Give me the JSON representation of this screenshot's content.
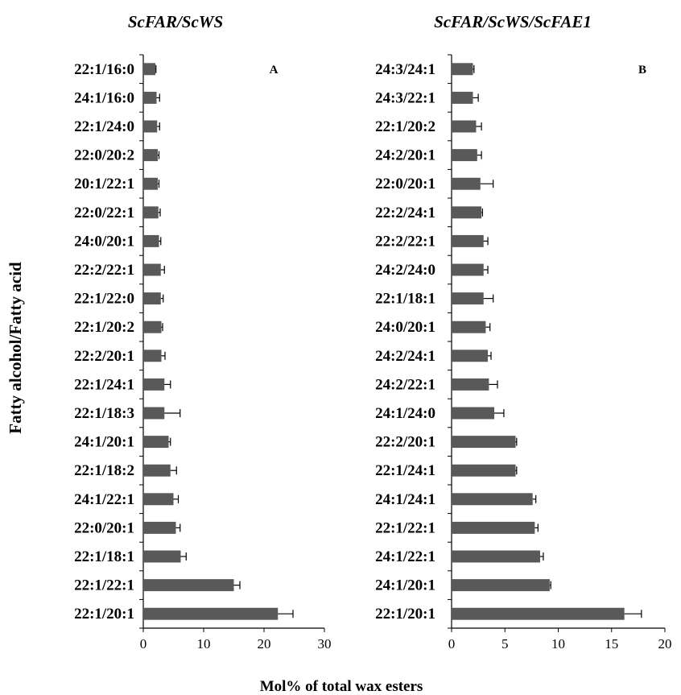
{
  "y_axis_label": "Fatty alcohol/Fatty acid",
  "x_axis_label": "Mol% of total wax esters",
  "chart_data": [
    {
      "type": "bar",
      "orientation": "horizontal",
      "title": "ScFAR/ScWS",
      "panel": "A",
      "categories": [
        "22:1/16:0",
        "24:1/16:0",
        "22:1/24:0",
        "22:0/20:2",
        "20:1/22:1",
        "22:0/22:1",
        "24:0/20:1",
        "22:2/22:1",
        "22:1/22:0",
        "22:1/20:2",
        "22:2/20:1",
        "22:1/24:1",
        "22:1/18:3",
        "24:1/20:1",
        "22:1/18:2",
        "24:1/22:1",
        "22:0/20:1",
        "22:1/18:1",
        "22:1/22:1",
        "22:1/20:1"
      ],
      "values": [
        2.0,
        2.2,
        2.3,
        2.4,
        2.4,
        2.5,
        2.6,
        2.9,
        2.9,
        3.0,
        3.0,
        3.5,
        3.5,
        4.2,
        4.5,
        5.0,
        5.4,
        6.2,
        15.0,
        22.3
      ],
      "errors": [
        0.1,
        0.5,
        0.4,
        0.2,
        0.2,
        0.3,
        0.3,
        0.6,
        0.4,
        0.2,
        0.6,
        1.0,
        2.6,
        0.3,
        1.0,
        0.8,
        0.7,
        0.9,
        1.0,
        2.5
      ],
      "xlim": [
        0,
        30
      ],
      "xticks": [
        0,
        10,
        20,
        30
      ],
      "grid": false
    },
    {
      "type": "bar",
      "orientation": "horizontal",
      "title": "ScFAR/ScWS/ScFAE1",
      "panel": "B",
      "categories": [
        "24:3/24:1",
        "24:3/22:1",
        "22:1/20:2",
        "24:2/20:1",
        "22:0/20:1",
        "22:2/24:1",
        "22:2/22:1",
        "24:2/24:0",
        "22:1/18:1",
        "24:0/20:1",
        "24:2/24:1",
        "24:2/22:1",
        "24:1/24:0",
        "22:2/20:1",
        "22:1/24:1",
        "24:1/24:1",
        "22:1/22:1",
        "24:1/22:1",
        "24:1/20:1",
        "22:1/20:1"
      ],
      "values": [
        2.0,
        2.0,
        2.3,
        2.4,
        2.7,
        2.8,
        3.0,
        3.0,
        3.0,
        3.2,
        3.4,
        3.5,
        4.0,
        6.0,
        6.0,
        7.6,
        7.8,
        8.3,
        9.2,
        16.2
      ],
      "errors": [
        0.1,
        0.5,
        0.5,
        0.4,
        1.2,
        0.1,
        0.4,
        0.4,
        0.9,
        0.4,
        0.3,
        0.8,
        0.9,
        0.1,
        0.1,
        0.3,
        0.3,
        0.3,
        0.1,
        1.6
      ],
      "xlim": [
        0,
        20
      ],
      "xticks": [
        0,
        5,
        10,
        15,
        20
      ],
      "grid": false
    }
  ]
}
